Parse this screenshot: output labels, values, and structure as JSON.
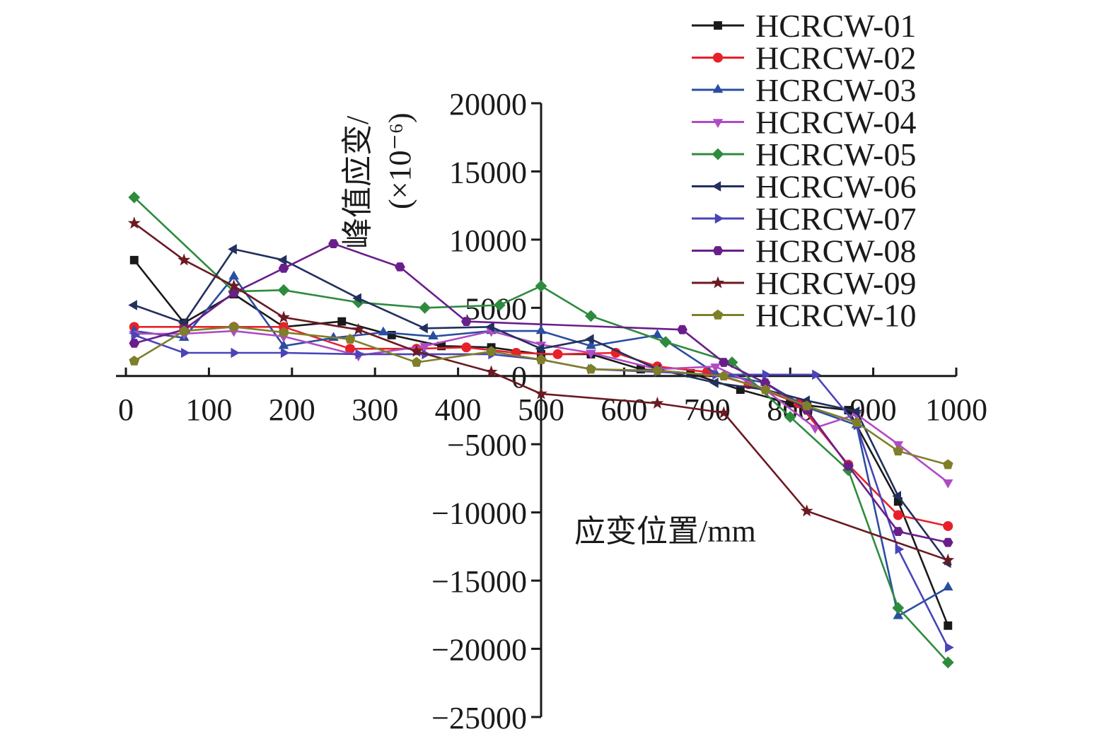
{
  "chart_data": {
    "type": "line",
    "title": "",
    "xlabel": "应变位置/mm",
    "ylabel_line1": "峰值应变/",
    "ylabel_line2": "(×10⁻⁶)",
    "xlim": [
      0,
      1000
    ],
    "ylim": [
      -25000,
      20000
    ],
    "x_ticks": [
      0,
      100,
      200,
      300,
      400,
      500,
      600,
      700,
      800,
      900,
      1000
    ],
    "y_ticks": [
      20000,
      15000,
      10000,
      5000,
      0,
      -5000,
      -10000,
      -15000,
      -20000,
      -25000
    ],
    "x_tick_labels": [
      "0",
      "100",
      "200",
      "300",
      "400",
      "500",
      "600",
      "700",
      "800",
      "900",
      "1000"
    ],
    "y_tick_labels": [
      "20000",
      "15000",
      "10000",
      "5000",
      "0",
      "−5000",
      "−10000",
      "−15000",
      "−20000",
      "−25000"
    ],
    "grid": false,
    "legend_position": "top-right",
    "series": [
      {
        "name": "HCRCW-01",
        "color": "#1a1a1a",
        "marker": "square",
        "x": [
          10,
          70,
          130,
          190,
          260,
          320,
          380,
          440,
          500,
          560,
          620,
          680,
          740,
          800,
          870,
          930,
          990
        ],
        "y": [
          8500,
          3900,
          6000,
          3600,
          4000,
          3000,
          2200,
          2100,
          1600,
          1600,
          500,
          200,
          -1000,
          -2000,
          -2500,
          -9200,
          -18300
        ]
      },
      {
        "name": "HCRCW-02",
        "color": "#e8202a",
        "marker": "circle",
        "x": [
          10,
          70,
          130,
          190,
          270,
          350,
          410,
          470,
          520,
          590,
          640,
          700,
          750,
          810,
          870,
          930,
          990
        ],
        "y": [
          3600,
          3600,
          3600,
          3600,
          2000,
          2000,
          2100,
          1700,
          1600,
          1700,
          700,
          300,
          -600,
          -2000,
          -6500,
          -10200,
          -11000
        ]
      },
      {
        "name": "HCRCW-03",
        "color": "#2a4ea0",
        "marker": "triangle-up",
        "x": [
          10,
          70,
          130,
          190,
          250,
          310,
          370,
          440,
          500,
          560,
          640,
          710,
          770,
          820,
          880,
          930,
          990
        ],
        "y": [
          3300,
          2800,
          7300,
          2200,
          2800,
          3200,
          2900,
          3300,
          3300,
          2200,
          3000,
          200,
          -500,
          -2300,
          -3600,
          -17600,
          -15500
        ]
      },
      {
        "name": "HCRCW-04",
        "color": "#b04bc4",
        "marker": "triangle-down",
        "x": [
          10,
          70,
          130,
          190,
          280,
          360,
          440,
          500,
          560,
          640,
          710,
          770,
          830,
          880,
          930,
          990
        ],
        "y": [
          3100,
          3100,
          3300,
          2900,
          1500,
          2200,
          3300,
          2300,
          1700,
          500,
          700,
          -1000,
          -3800,
          -2800,
          -5000,
          -7800
        ]
      },
      {
        "name": "HCRCW-05",
        "color": "#2e8b3e",
        "marker": "diamond",
        "x": [
          10,
          130,
          190,
          280,
          360,
          450,
          500,
          560,
          650,
          730,
          800,
          870,
          930,
          990
        ],
        "y": [
          13100,
          6200,
          6300,
          5400,
          5000,
          5200,
          6600,
          4400,
          2500,
          1000,
          -3000,
          -6900,
          -17000,
          -21000
        ]
      },
      {
        "name": "HCRCW-06",
        "color": "#22305e",
        "marker": "triangle-left",
        "x": [
          10,
          70,
          130,
          190,
          280,
          360,
          440,
          500,
          560,
          640,
          710,
          770,
          820,
          880,
          930,
          990
        ],
        "y": [
          5200,
          3900,
          9300,
          8500,
          5700,
          3500,
          3600,
          2000,
          2700,
          500,
          -500,
          -1000,
          -1800,
          -2600,
          -8800,
          -13700
        ]
      },
      {
        "name": "HCRCW-07",
        "color": "#4a44b8",
        "marker": "triangle-right",
        "x": [
          10,
          70,
          130,
          190,
          280,
          360,
          440,
          500,
          560,
          640,
          710,
          770,
          830,
          880,
          930,
          990
        ],
        "y": [
          3000,
          1700,
          1700,
          1700,
          1600,
          1600,
          1600,
          1200,
          500,
          300,
          100,
          100,
          100,
          -3600,
          -12700,
          -19900
        ]
      },
      {
        "name": "HCRCW-08",
        "color": "#6a1e8a",
        "marker": "hexagon",
        "x": [
          10,
          70,
          130,
          190,
          250,
          330,
          410,
          670,
          720,
          770,
          820,
          870,
          930,
          990
        ],
        "y": [
          2400,
          3400,
          6100,
          7900,
          9700,
          8000,
          4000,
          3400,
          1000,
          -500,
          -2500,
          -6600,
          -11400,
          -12200
        ]
      },
      {
        "name": "HCRCW-09",
        "color": "#6b1a22",
        "marker": "star",
        "x": [
          10,
          70,
          130,
          190,
          280,
          350,
          440,
          500,
          640,
          720,
          820,
          990
        ],
        "y": [
          11200,
          8500,
          6600,
          4300,
          3400,
          1800,
          300,
          -1300,
          -2000,
          -2700,
          -9900,
          -13500
        ]
      },
      {
        "name": "HCRCW-10",
        "color": "#7f7f2a",
        "marker": "pentagon",
        "x": [
          10,
          70,
          130,
          190,
          270,
          350,
          440,
          500,
          560,
          640,
          720,
          770,
          820,
          880,
          930,
          990
        ],
        "y": [
          1100,
          3300,
          3600,
          3200,
          2700,
          1000,
          1800,
          1200,
          500,
          400,
          0,
          -1000,
          -2200,
          -3400,
          -5500,
          -6500
        ]
      }
    ]
  }
}
